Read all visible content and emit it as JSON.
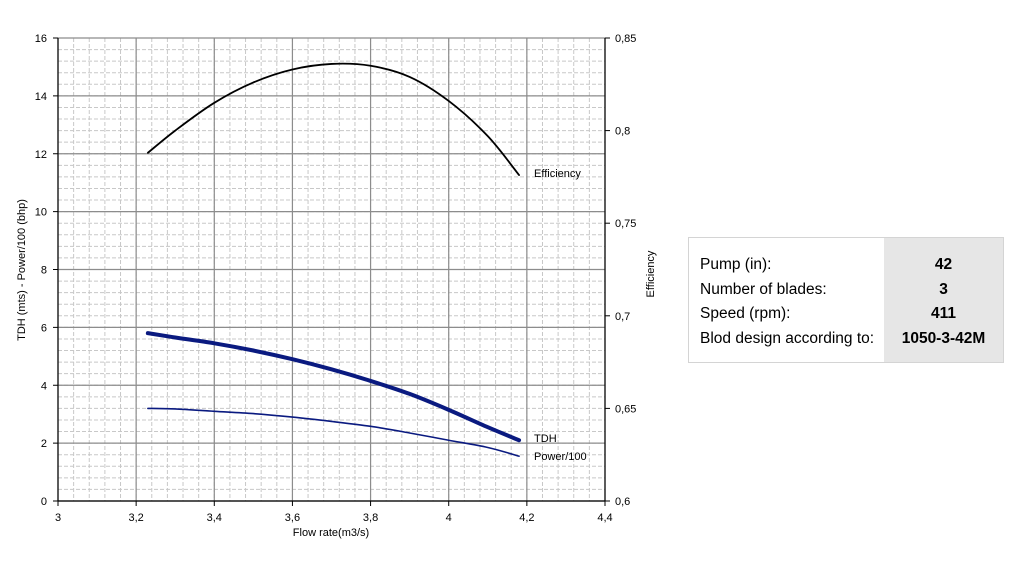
{
  "chart_data": {
    "type": "line",
    "xlabel": "Flow rate(m3/s)",
    "ylabel_left": "TDH  (mts) - Power/100 (bhp)",
    "ylabel_right": "Efficiency",
    "xlim": [
      3,
      4.4
    ],
    "ylim_left": [
      0,
      16
    ],
    "ylim_right": [
      0.6,
      0.85
    ],
    "x_ticks": [
      "3",
      "3,2",
      "3,4",
      "3,6",
      "3,8",
      "4",
      "4,2",
      "4,4"
    ],
    "x_tick_values": [
      3,
      3.2,
      3.4,
      3.6,
      3.8,
      4,
      4.2,
      4.4
    ],
    "y_left_ticks": [
      "0",
      "2",
      "4",
      "6",
      "8",
      "10",
      "12",
      "14",
      "16"
    ],
    "y_left_tick_values": [
      0,
      2,
      4,
      6,
      8,
      10,
      12,
      14,
      16
    ],
    "y_right_ticks": [
      "0,6",
      "0,65",
      "0,7",
      "0,75",
      "0,8",
      "0,85"
    ],
    "y_right_tick_values": [
      0.6,
      0.65,
      0.7,
      0.75,
      0.8,
      0.85
    ],
    "grid": true,
    "series": [
      {
        "name": "Efficiency",
        "axis": "right",
        "color": "#000000",
        "x": [
          3.23,
          3.3,
          3.4,
          3.5,
          3.6,
          3.7,
          3.8,
          3.9,
          4.0,
          4.1,
          4.18
        ],
        "y": [
          0.788,
          0.8,
          0.815,
          0.826,
          0.833,
          0.836,
          0.835,
          0.829,
          0.816,
          0.797,
          0.776
        ]
      },
      {
        "name": "TDH",
        "axis": "left",
        "color": "#0a1a80",
        "x": [
          3.23,
          3.3,
          3.4,
          3.5,
          3.6,
          3.7,
          3.8,
          3.9,
          4.0,
          4.1,
          4.18
        ],
        "y": [
          5.8,
          5.65,
          5.45,
          5.2,
          4.9,
          4.55,
          4.15,
          3.7,
          3.15,
          2.55,
          2.1
        ]
      },
      {
        "name": "Power/100",
        "axis": "left",
        "color": "#0a1a80",
        "x": [
          3.23,
          3.3,
          3.4,
          3.5,
          3.6,
          3.7,
          3.8,
          3.9,
          4.0,
          4.1,
          4.18
        ],
        "y": [
          3.2,
          3.18,
          3.1,
          3.02,
          2.9,
          2.75,
          2.58,
          2.35,
          2.1,
          1.85,
          1.55
        ]
      }
    ]
  },
  "info_table": {
    "rows": [
      {
        "label": "Pump (in):",
        "value": "42"
      },
      {
        "label": "Number of blades:",
        "value": "3"
      },
      {
        "label": "Speed (rpm):",
        "value": "411"
      },
      {
        "label": "Blod design according to:",
        "value": "1050-3-42M"
      }
    ]
  }
}
